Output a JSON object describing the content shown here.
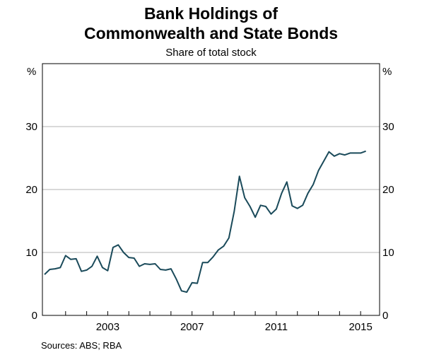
{
  "chart_data": {
    "type": "line",
    "title_lines": [
      "Bank Holdings of",
      "Commonwealth and State Bonds"
    ],
    "subtitle": "Share of total stock",
    "unit_label": "%",
    "source": "Sources:  ABS; RBA",
    "grid": true,
    "xlim": [
      1999.9,
      2015.9
    ],
    "ylim": [
      0,
      40
    ],
    "x_ticks": [
      2001,
      2002,
      2003,
      2004,
      2005,
      2006,
      2007,
      2008,
      2009,
      2010,
      2011,
      2012,
      2013,
      2014,
      2015
    ],
    "x_tick_labels": [
      {
        "value": 2003,
        "label": "2003"
      },
      {
        "value": 2007,
        "label": "2007"
      },
      {
        "value": 2011,
        "label": "2011"
      },
      {
        "value": 2015,
        "label": "2015"
      }
    ],
    "y_ticks": [
      {
        "value": 0,
        "label": "0"
      },
      {
        "value": 10,
        "label": "10"
      },
      {
        "value": 20,
        "label": "20"
      },
      {
        "value": 30,
        "label": "30"
      }
    ],
    "series": [
      {
        "color": "#1a4a5a",
        "points": [
          [
            2000.0,
            6.5
          ],
          [
            2000.25,
            7.3
          ],
          [
            2000.5,
            7.4
          ],
          [
            2000.75,
            7.6
          ],
          [
            2001.0,
            9.5
          ],
          [
            2001.25,
            8.9
          ],
          [
            2001.5,
            9.0
          ],
          [
            2001.75,
            7.0
          ],
          [
            2002.0,
            7.2
          ],
          [
            2002.25,
            7.8
          ],
          [
            2002.5,
            9.4
          ],
          [
            2002.75,
            7.6
          ],
          [
            2003.0,
            7.1
          ],
          [
            2003.25,
            10.8
          ],
          [
            2003.5,
            11.2
          ],
          [
            2003.75,
            10.0
          ],
          [
            2004.0,
            9.2
          ],
          [
            2004.25,
            9.1
          ],
          [
            2004.5,
            7.8
          ],
          [
            2004.75,
            8.2
          ],
          [
            2005.0,
            8.1
          ],
          [
            2005.25,
            8.2
          ],
          [
            2005.5,
            7.3
          ],
          [
            2005.75,
            7.2
          ],
          [
            2006.0,
            7.4
          ],
          [
            2006.25,
            5.8
          ],
          [
            2006.5,
            3.9
          ],
          [
            2006.75,
            3.7
          ],
          [
            2007.0,
            5.2
          ],
          [
            2007.25,
            5.1
          ],
          [
            2007.5,
            8.4
          ],
          [
            2007.75,
            8.4
          ],
          [
            2008.0,
            9.3
          ],
          [
            2008.25,
            10.4
          ],
          [
            2008.5,
            11.0
          ],
          [
            2008.75,
            12.3
          ],
          [
            2009.0,
            16.5
          ],
          [
            2009.25,
            22.1
          ],
          [
            2009.5,
            18.7
          ],
          [
            2009.75,
            17.3
          ],
          [
            2010.0,
            15.6
          ],
          [
            2010.25,
            17.5
          ],
          [
            2010.5,
            17.3
          ],
          [
            2010.75,
            16.1
          ],
          [
            2011.0,
            16.9
          ],
          [
            2011.25,
            19.4
          ],
          [
            2011.5,
            21.2
          ],
          [
            2011.75,
            17.4
          ],
          [
            2012.0,
            17.0
          ],
          [
            2012.25,
            17.5
          ],
          [
            2012.5,
            19.4
          ],
          [
            2012.75,
            20.8
          ],
          [
            2013.0,
            23.0
          ],
          [
            2013.25,
            24.5
          ],
          [
            2013.5,
            26.0
          ],
          [
            2013.75,
            25.3
          ],
          [
            2014.0,
            25.7
          ],
          [
            2014.25,
            25.5
          ],
          [
            2014.5,
            25.8
          ],
          [
            2014.75,
            25.8
          ],
          [
            2015.0,
            25.8
          ],
          [
            2015.25,
            26.1
          ]
        ]
      }
    ]
  }
}
